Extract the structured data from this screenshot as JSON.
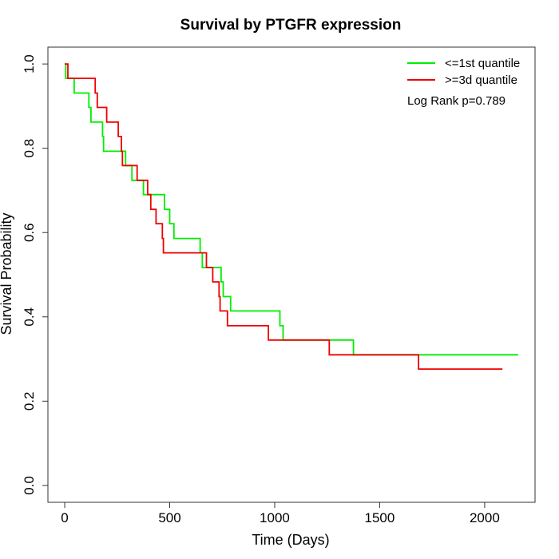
{
  "chart_data": {
    "type": "line",
    "subtype": "kaplan-meier-step",
    "title": "Survival by PTGFR expression",
    "xlabel": "Time (Days)",
    "ylabel": "Survival Probability",
    "xlim": [
      -80,
      2240
    ],
    "ylim": [
      -0.04,
      1.04
    ],
    "x_ticks": [
      0,
      500,
      1000,
      1500,
      2000
    ],
    "y_ticks": [
      0.0,
      0.2,
      0.4,
      0.6,
      0.8,
      1.0
    ],
    "x_tick_labels": [
      "0",
      "500",
      "1000",
      "1500",
      "2000"
    ],
    "y_tick_labels": [
      "0.0",
      "0.2",
      "0.4",
      "0.6",
      "0.8",
      "1.0"
    ],
    "grid": false,
    "legend_position": "top-right",
    "annotation": "Log Rank p=0.789",
    "series": [
      {
        "name": "<=1st quantile",
        "color": "#00ee00",
        "points": [
          [
            0,
            1.0
          ],
          [
            5,
            0.966
          ],
          [
            45,
            0.931
          ],
          [
            115,
            0.897
          ],
          [
            125,
            0.862
          ],
          [
            180,
            0.828
          ],
          [
            185,
            0.793
          ],
          [
            290,
            0.759
          ],
          [
            320,
            0.724
          ],
          [
            375,
            0.69
          ],
          [
            475,
            0.655
          ],
          [
            500,
            0.621
          ],
          [
            520,
            0.586
          ],
          [
            645,
            0.552
          ],
          [
            655,
            0.517
          ],
          [
            745,
            0.483
          ],
          [
            755,
            0.448
          ],
          [
            790,
            0.414
          ],
          [
            1025,
            0.379
          ],
          [
            1040,
            0.345
          ],
          [
            1375,
            0.31
          ],
          [
            2160,
            0.31
          ]
        ]
      },
      {
        "name": ">=3d quantile",
        "color": "#ee0000",
        "points": [
          [
            0,
            1.0
          ],
          [
            15,
            0.966
          ],
          [
            145,
            0.931
          ],
          [
            155,
            0.897
          ],
          [
            200,
            0.862
          ],
          [
            255,
            0.828
          ],
          [
            270,
            0.793
          ],
          [
            275,
            0.759
          ],
          [
            345,
            0.724
          ],
          [
            395,
            0.69
          ],
          [
            410,
            0.655
          ],
          [
            435,
            0.621
          ],
          [
            465,
            0.586
          ],
          [
            470,
            0.552
          ],
          [
            675,
            0.517
          ],
          [
            705,
            0.483
          ],
          [
            735,
            0.448
          ],
          [
            740,
            0.414
          ],
          [
            775,
            0.379
          ],
          [
            970,
            0.345
          ],
          [
            1260,
            0.31
          ],
          [
            1685,
            0.276
          ],
          [
            2085,
            0.276
          ]
        ]
      }
    ]
  }
}
